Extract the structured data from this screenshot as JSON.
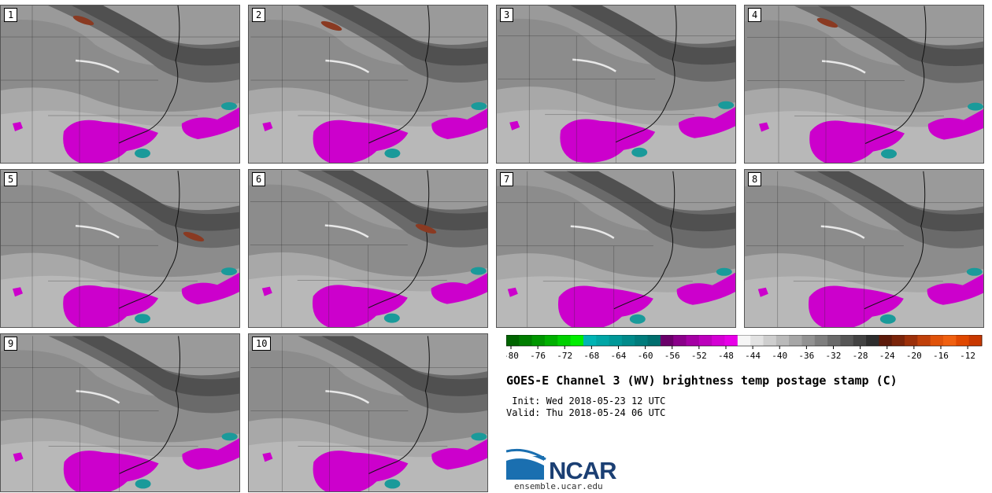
{
  "panels": [
    {
      "label": "1"
    },
    {
      "label": "2"
    },
    {
      "label": "3"
    },
    {
      "label": "4"
    },
    {
      "label": "5"
    },
    {
      "label": "6"
    },
    {
      "label": "7"
    },
    {
      "label": "8"
    },
    {
      "label": "9"
    },
    {
      "label": "10"
    }
  ],
  "colorbar": {
    "ticks": [
      "-80",
      "-76",
      "-72",
      "-68",
      "-64",
      "-60",
      "-56",
      "-52",
      "-48",
      "-44",
      "-40",
      "-36",
      "-32",
      "-28",
      "-24",
      "-20",
      "-16",
      "-12"
    ],
    "colors": [
      "#006400",
      "#007d00",
      "#009600",
      "#00b000",
      "#00d000",
      "#00ee00",
      "#00b4b4",
      "#00a6a6",
      "#009898",
      "#008a8a",
      "#007c7c",
      "#006e6e",
      "#6a006a",
      "#8a008a",
      "#a400a4",
      "#bc00bc",
      "#d400d4",
      "#e800e8",
      "#f6f6f6",
      "#e2e2e2",
      "#cecece",
      "#bababa",
      "#a6a6a6",
      "#929292",
      "#7e7e7e",
      "#6a6a6a",
      "#565656",
      "#424242",
      "#2e2e2e",
      "#5c1a0a",
      "#7a240a",
      "#9c300a",
      "#c0400a",
      "#e0520a",
      "#f06010",
      "#e04800",
      "#c83800"
    ]
  },
  "title": "GOES-E Channel 3 (WV) brightness temp postage stamp (C)",
  "init": " Init: Wed 2018-05-23 12 UTC",
  "valid": "Valid: Thu 2018-05-24 06 UTC",
  "logo": {
    "text": "NCAR",
    "website": "ensemble.ucar.edu"
  }
}
